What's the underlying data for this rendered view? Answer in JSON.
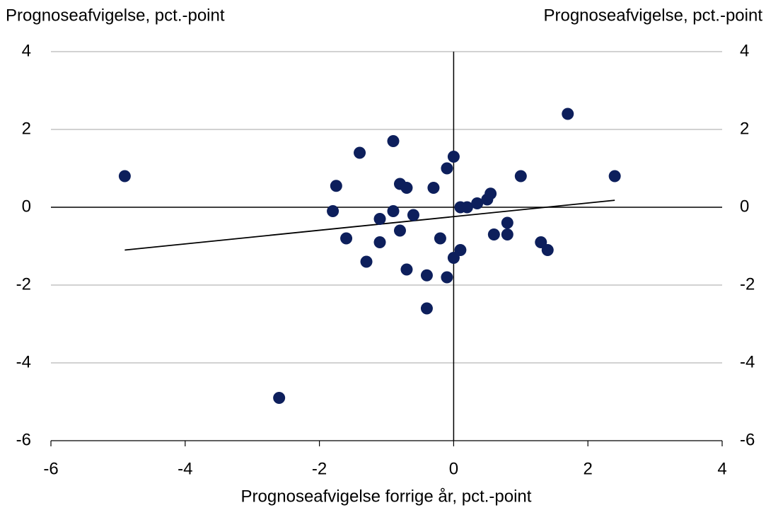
{
  "chart_data": {
    "type": "scatter",
    "y_label": "Prognoseafvigelse, pct.-point",
    "y2_label": "Prognoseafvigelse, pct.-point",
    "x_label": "Prognoseafvigelse forrige år, pct.-point",
    "x": [
      -4.9,
      -2.6,
      -1.8,
      -1.75,
      -1.6,
      -1.4,
      -1.3,
      -1.1,
      -1.1,
      -0.9,
      -0.9,
      -0.8,
      -0.8,
      -0.7,
      -0.7,
      -0.6,
      -0.4,
      -0.4,
      -0.3,
      -0.2,
      -0.1,
      -0.1,
      0,
      0,
      0.1,
      0.1,
      0.2,
      0.35,
      0.5,
      0.55,
      0.6,
      0.8,
      0.8,
      1.0,
      1.3,
      1.4,
      1.7,
      2.4
    ],
    "series": [
      {
        "color": "#0d1f5c",
        "values": [
          0.8,
          -4.9,
          -0.1,
          0.55,
          -0.8,
          1.4,
          -1.4,
          -0.3,
          -0.9,
          1.7,
          -0.1,
          0.6,
          -0.6,
          0.5,
          -1.6,
          -0.2,
          -1.75,
          -2.6,
          0.5,
          -0.8,
          1.0,
          -1.8,
          1.3,
          -1.3,
          0,
          -1.1,
          0,
          0.1,
          0.2,
          0.35,
          -0.7,
          -0.4,
          -0.7,
          0.8,
          -0.9,
          -1.1,
          2.4,
          0.8
        ]
      }
    ],
    "trendline": {
      "color": "#000000",
      "x": [
        -4.9,
        2.4
      ],
      "values": [
        -1.1,
        0.18
      ]
    },
    "xlim": [
      -6,
      4
    ],
    "xticks": [
      -6,
      -4,
      -2,
      0,
      2,
      4
    ],
    "ylim": [
      -6,
      4
    ],
    "yticks": [
      4,
      2,
      0,
      -2,
      -4,
      -6
    ],
    "y2lim": [
      -6,
      4
    ],
    "y2ticks": [
      4,
      2,
      0,
      -2,
      -4,
      -6
    ],
    "grid": true
  }
}
